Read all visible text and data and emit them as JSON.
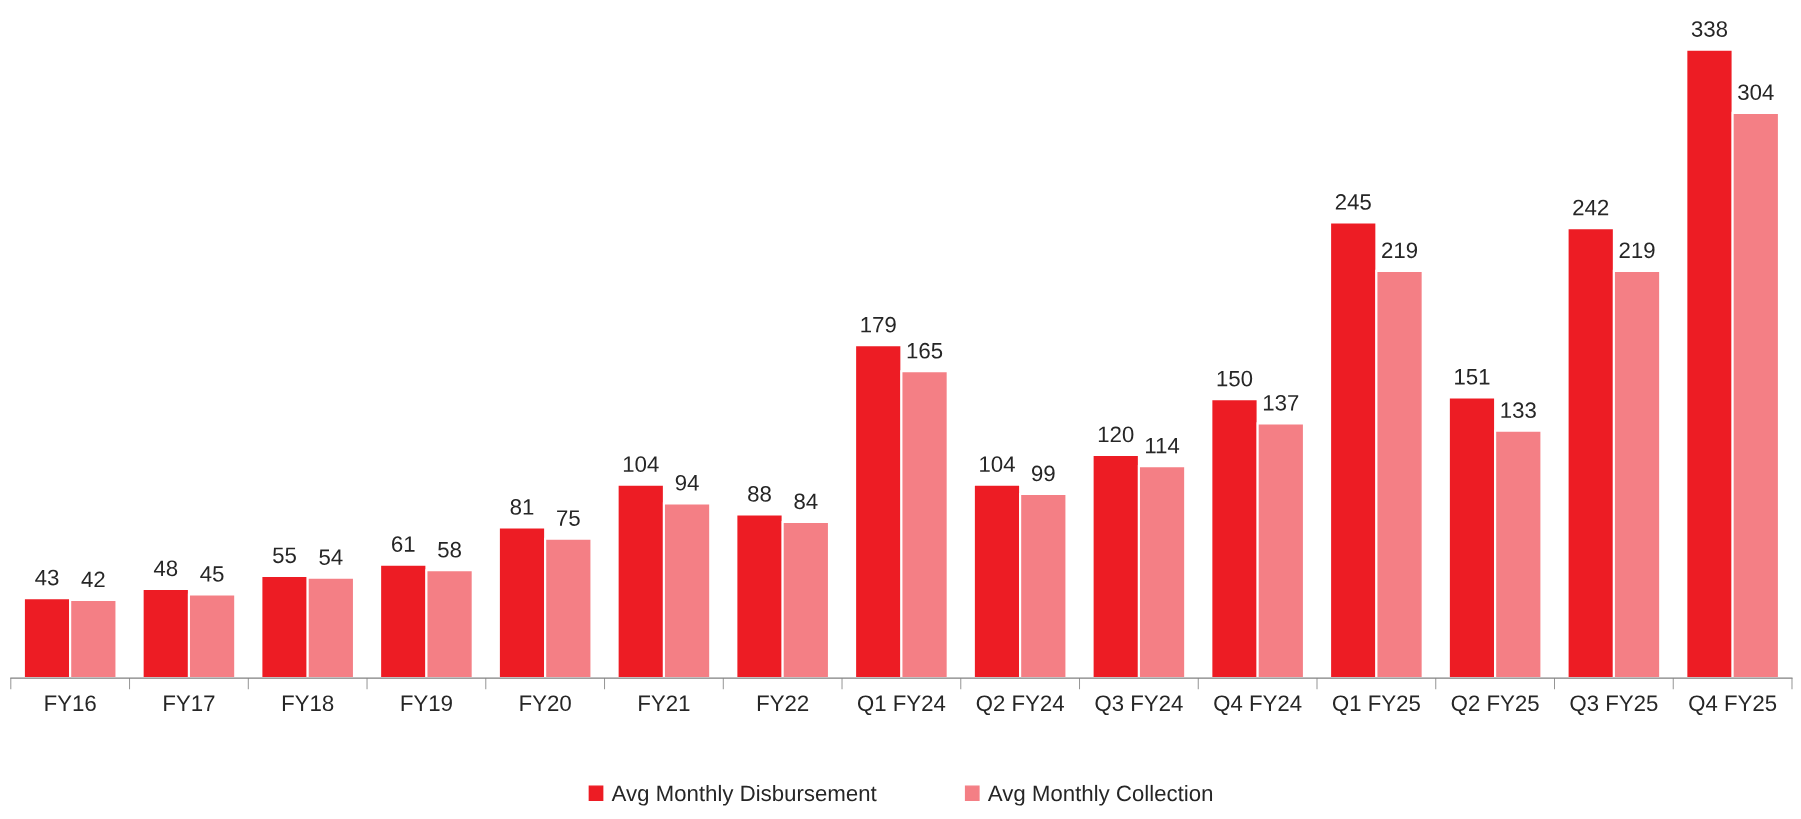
{
  "chart_data": {
    "type": "bar",
    "categories": [
      "FY16",
      "FY17",
      "FY18",
      "FY19",
      "FY20",
      "FY21",
      "FY22",
      "Q1 FY24",
      "Q2 FY24",
      "Q3 FY24",
      "Q4 FY24",
      "Q1 FY25",
      "Q2 FY25",
      "Q3 FY25",
      "Q4 FY25"
    ],
    "series": [
      {
        "name": "Avg Monthly Disbursement",
        "color": "#ed1c24",
        "values": [
          43,
          48,
          55,
          61,
          81,
          104,
          88,
          179,
          104,
          120,
          150,
          245,
          151,
          242,
          338
        ]
      },
      {
        "name": "Avg Monthly Collection",
        "color": "#f47f85",
        "values": [
          42,
          45,
          54,
          58,
          75,
          94,
          84,
          165,
          99,
          114,
          137,
          219,
          133,
          219,
          304
        ]
      }
    ],
    "data_labels": true,
    "legend": "bottom"
  }
}
